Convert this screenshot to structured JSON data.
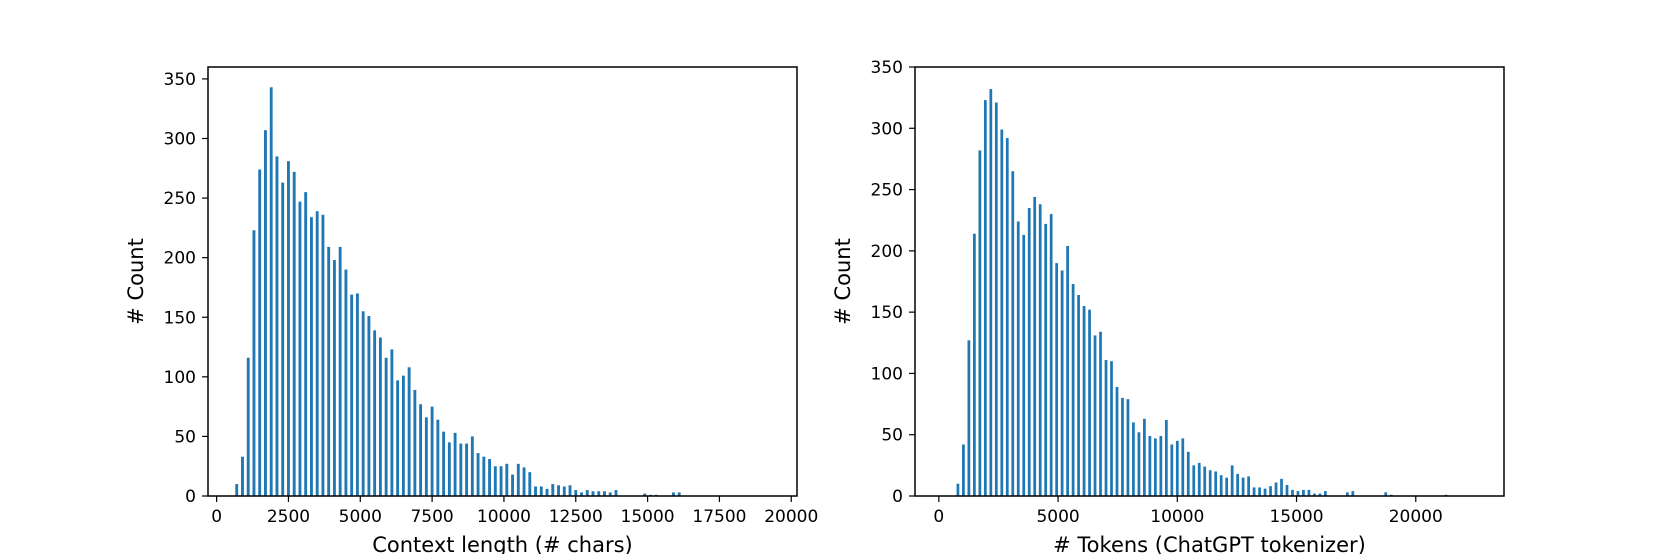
{
  "chart_data": [
    {
      "type": "bar",
      "xlabel": "Context length (# chars)",
      "ylabel": "# Count",
      "xlim": [
        -300,
        20200
      ],
      "ylim": [
        0,
        360
      ],
      "xticks": [
        0,
        2500,
        5000,
        7500,
        10000,
        12500,
        15000,
        17500,
        20000
      ],
      "xtick_labels": [
        "0",
        "2500",
        "5000",
        "7500",
        "10000",
        "12500",
        "15000",
        "17500",
        "20000"
      ],
      "yticks": [
        0,
        50,
        100,
        150,
        200,
        250,
        300,
        350
      ],
      "ytick_labels": [
        "0",
        "50",
        "100",
        "150",
        "200",
        "250",
        "300",
        "350"
      ],
      "bar_width": 100,
      "color": "#1f77b4",
      "grid": false,
      "x": [
        700,
        900,
        1100,
        1300,
        1500,
        1700,
        1900,
        2100,
        2300,
        2500,
        2700,
        2900,
        3100,
        3300,
        3500,
        3700,
        3900,
        4100,
        4300,
        4500,
        4700,
        4900,
        5100,
        5300,
        5500,
        5700,
        5900,
        6100,
        6300,
        6500,
        6700,
        6900,
        7100,
        7300,
        7500,
        7700,
        7900,
        8100,
        8300,
        8500,
        8700,
        8900,
        9100,
        9300,
        9500,
        9700,
        9900,
        10100,
        10300,
        10500,
        10700,
        10900,
        11100,
        11300,
        11500,
        11700,
        11900,
        12100,
        12300,
        12500,
        12700,
        12900,
        13100,
        13300,
        13500,
        13700,
        13900,
        14100,
        14300,
        14500,
        14700,
        14900,
        15100,
        15300,
        15500,
        15700,
        15900,
        16100
      ],
      "values": [
        10,
        33,
        116,
        223,
        274,
        307,
        343,
        285,
        263,
        281,
        272,
        247,
        255,
        234,
        239,
        236,
        209,
        198,
        209,
        190,
        169,
        170,
        155,
        151,
        139,
        133,
        116,
        123,
        97,
        101,
        108,
        89,
        77,
        66,
        75,
        64,
        54,
        45,
        53,
        44,
        44,
        50,
        36,
        33,
        31,
        25,
        25,
        27,
        18,
        27,
        24,
        20,
        8,
        8,
        6,
        10,
        9,
        8,
        9,
        5,
        3,
        5,
        4,
        4,
        4,
        3,
        5,
        0,
        0,
        0,
        0,
        2,
        1,
        1,
        0,
        0,
        3,
        3
      ]
    },
    {
      "type": "bar",
      "xlabel": "# Tokens (ChatGPT tokenizer)",
      "ylabel": "# Count",
      "xlim": [
        -1000,
        23700
      ],
      "ylim": [
        0,
        350
      ],
      "xticks": [
        0,
        5000,
        10000,
        15000,
        20000
      ],
      "xtick_labels": [
        "0",
        "5000",
        "10000",
        "15000",
        "20000"
      ],
      "yticks": [
        0,
        50,
        100,
        150,
        200,
        250,
        300,
        350
      ],
      "ytick_labels": [
        "0",
        "50",
        "100",
        "150",
        "200",
        "250",
        "300",
        "350"
      ],
      "bar_width": 115,
      "color": "#1f77b4",
      "grid": false,
      "x": [
        800,
        1030,
        1260,
        1490,
        1720,
        1950,
        2180,
        2410,
        2640,
        2870,
        3100,
        3330,
        3560,
        3790,
        4020,
        4250,
        4480,
        4710,
        4940,
        5170,
        5400,
        5630,
        5860,
        6090,
        6320,
        6550,
        6780,
        7010,
        7240,
        7470,
        7700,
        7930,
        8160,
        8390,
        8620,
        8850,
        9080,
        9310,
        9540,
        9770,
        10000,
        10230,
        10460,
        10690,
        10920,
        11150,
        11380,
        11610,
        11840,
        12070,
        12300,
        12530,
        12760,
        12990,
        13220,
        13450,
        13680,
        13910,
        14140,
        14370,
        14600,
        14830,
        15060,
        15290,
        15520,
        15750,
        15980,
        16210,
        16440,
        16670,
        16900,
        17130,
        17360,
        17590,
        17820,
        18050,
        18280,
        18510,
        18740,
        18970,
        19200,
        19430,
        19660,
        19890,
        20120,
        20350,
        20580,
        20810,
        21040,
        21270
      ],
      "values": [
        10,
        42,
        127,
        214,
        282,
        323,
        332,
        321,
        299,
        292,
        265,
        224,
        213,
        235,
        244,
        238,
        222,
        230,
        190,
        184,
        204,
        173,
        164,
        155,
        152,
        131,
        134,
        111,
        110,
        89,
        80,
        79,
        60,
        52,
        63,
        49,
        47,
        49,
        62,
        42,
        45,
        47,
        36,
        25,
        27,
        24,
        21,
        20,
        17,
        15,
        25,
        18,
        15,
        16,
        7,
        7,
        6,
        8,
        11,
        14,
        9,
        5,
        4,
        5,
        5,
        2,
        2,
        4,
        0,
        0,
        0,
        3,
        4,
        0,
        0,
        0,
        0,
        0,
        3,
        1,
        0,
        0,
        0,
        0,
        0,
        0,
        0,
        0,
        0,
        1
      ]
    }
  ]
}
